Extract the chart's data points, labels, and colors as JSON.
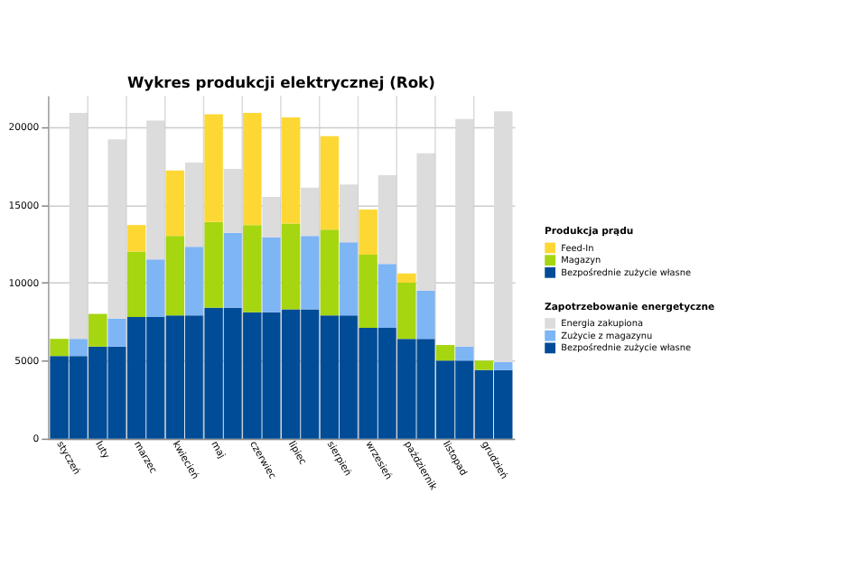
{
  "chart_data": {
    "type": "bar",
    "title": "Wykres produkcji elektrycznej (Rok)",
    "stacked": true,
    "categories": [
      "styczeń",
      null,
      "luty",
      null,
      "marzec",
      null,
      "kwiecień",
      null,
      "maj",
      null,
      "czerwiec",
      null,
      "lipiec",
      null,
      "sierpień",
      null,
      "wrzesień",
      null,
      "październik",
      null,
      "listopad",
      null,
      "grudzień",
      null
    ],
    "legend_title": [
      "Produkcja prądu",
      "Zapotrzebowanie energetyczne"
    ],
    "series": [
      {
        "name": "Bezpośrednie zużycie własne",
        "color": "#004c97",
        "values": [
          5300,
          null,
          5900,
          null,
          7800,
          null,
          7900,
          null,
          8400,
          null,
          8100,
          null,
          8300,
          null,
          7900,
          null,
          7100,
          null,
          6400,
          null,
          5000,
          null,
          4400,
          null
        ]
      },
      {
        "name": "Magazyn",
        "color": "#a5d610",
        "values": [
          1100,
          null,
          2100,
          null,
          4200,
          null,
          5100,
          null,
          5500,
          null,
          5600,
          null,
          5500,
          null,
          5500,
          null,
          4700,
          null,
          3600,
          null,
          1000,
          null,
          600,
          null
        ]
      },
      {
        "name": "Feed-In",
        "color": "#fdd835",
        "values": [
          0,
          null,
          0,
          null,
          1700,
          null,
          4200,
          null,
          6900,
          null,
          7200,
          null,
          6800,
          null,
          6000,
          null,
          2900,
          null,
          600,
          null,
          0,
          null,
          0,
          null
        ]
      },
      {
        "name": "Bezpośrednie zużycie własne",
        "color": "#004c97",
        "values": [
          null,
          5300,
          null,
          5900,
          null,
          7800,
          null,
          7900,
          null,
          8400,
          null,
          8100,
          null,
          8300,
          null,
          7900,
          null,
          7100,
          null,
          6400,
          null,
          5000,
          null,
          4400
        ]
      },
      {
        "name": "Zużycie z magazynu",
        "color": "#7db5f5",
        "values": [
          null,
          1100,
          null,
          1800,
          null,
          3700,
          null,
          4400,
          null,
          4800,
          null,
          4800,
          null,
          4700,
          null,
          4700,
          null,
          4100,
          null,
          3100,
          null,
          900,
          null,
          500
        ]
      },
      {
        "name": "Energia zakupiona",
        "color": "#dcdcdc",
        "values": [
          null,
          14500,
          null,
          11500,
          null,
          8900,
          null,
          5400,
          null,
          4100,
          null,
          2600,
          null,
          3100,
          null,
          3700,
          null,
          5700,
          null,
          8800,
          null,
          14600,
          null,
          16100
        ]
      }
    ],
    "ylim": [
      0,
      22000
    ],
    "yticks": [
      0,
      5000,
      10000,
      15000,
      20000
    ],
    "grid": true,
    "legend": "right"
  }
}
